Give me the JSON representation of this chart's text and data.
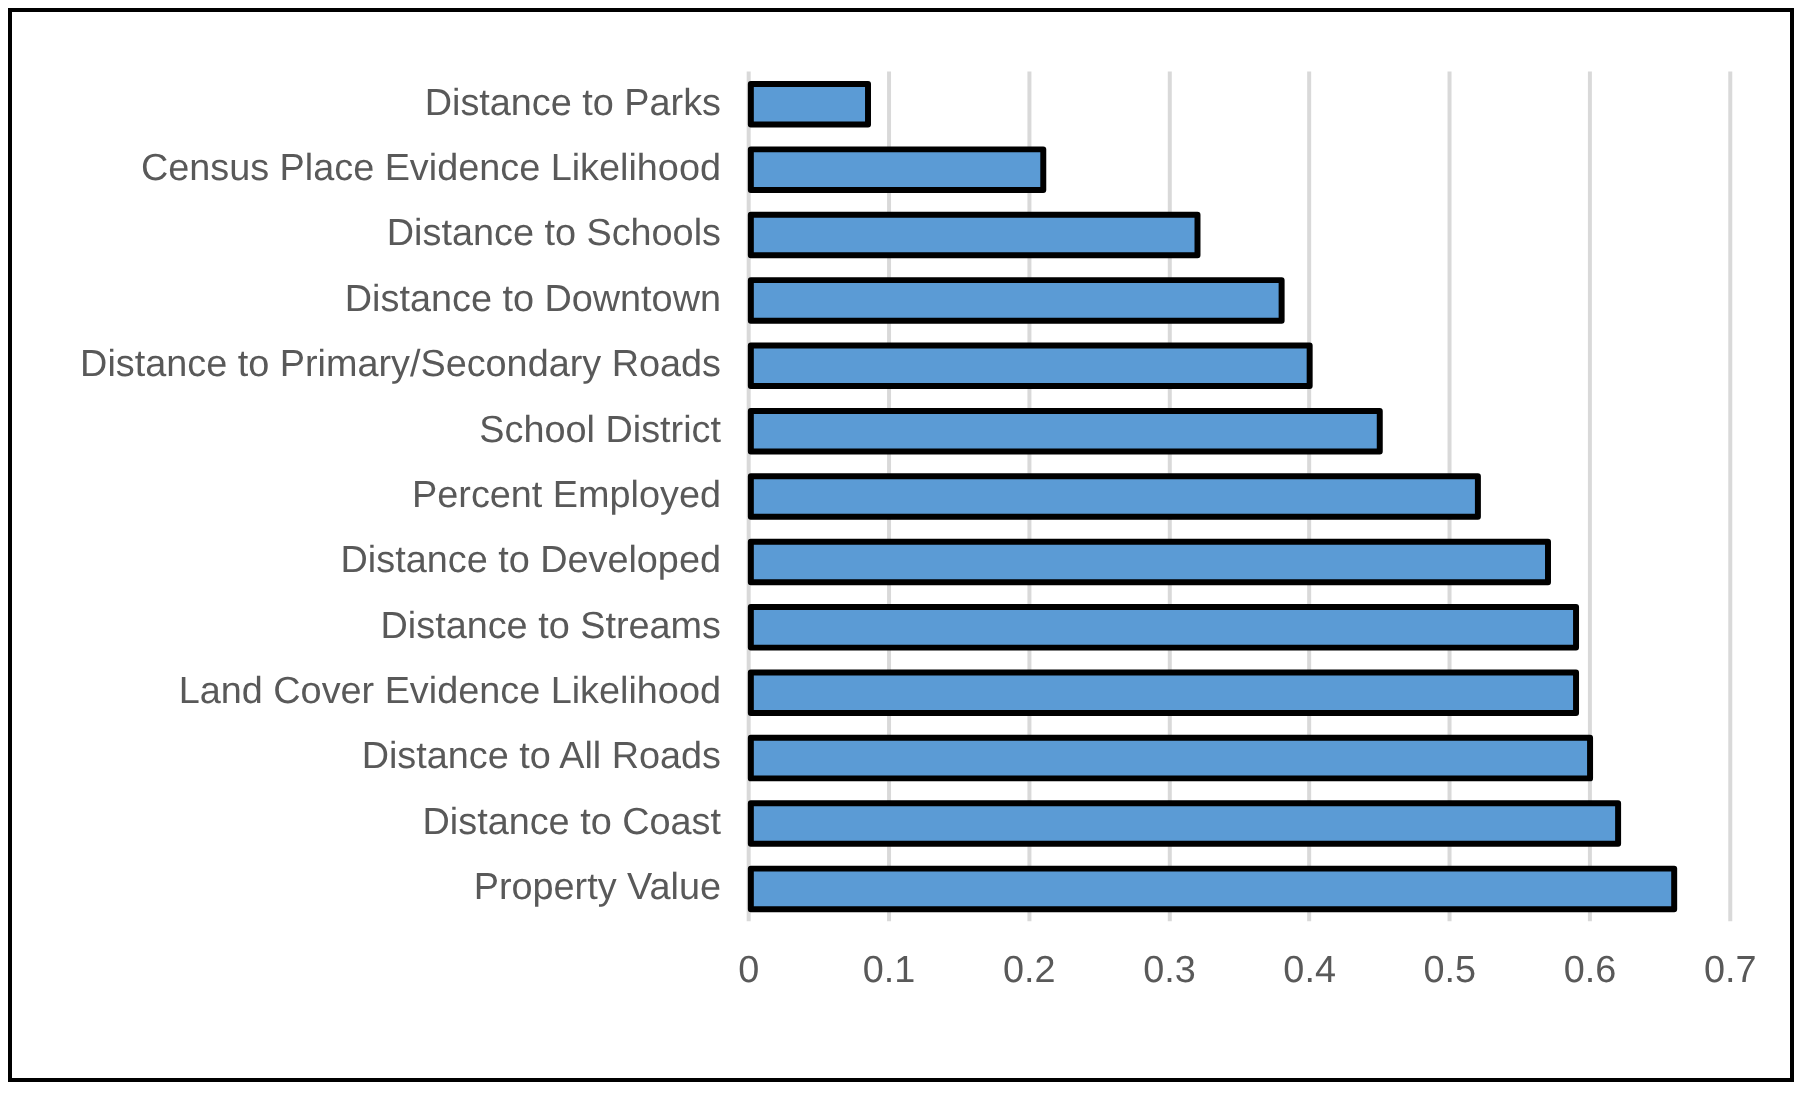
{
  "chart_data": {
    "type": "bar",
    "orientation": "horizontal",
    "categories": [
      "Distance to Parks",
      "Census Place Evidence Likelihood",
      "Distance to Schools",
      "Distance to Downtown",
      "Distance to Primary/Secondary Roads",
      "School District",
      "Percent Employed",
      "Distance to Developed",
      "Distance to Streams",
      "Land Cover Evidence Likelihood",
      "Distance to All Roads",
      "Distance to Coast",
      "Property Value"
    ],
    "values": [
      0.085,
      0.21,
      0.32,
      0.38,
      0.4,
      0.45,
      0.52,
      0.57,
      0.59,
      0.59,
      0.6,
      0.62,
      0.66
    ],
    "color": "#5b9bd5",
    "xlim": [
      0,
      0.7
    ],
    "xticks": [
      0,
      0.1,
      0.2,
      0.3,
      0.4,
      0.5,
      0.6,
      0.7
    ],
    "grid": "x"
  }
}
